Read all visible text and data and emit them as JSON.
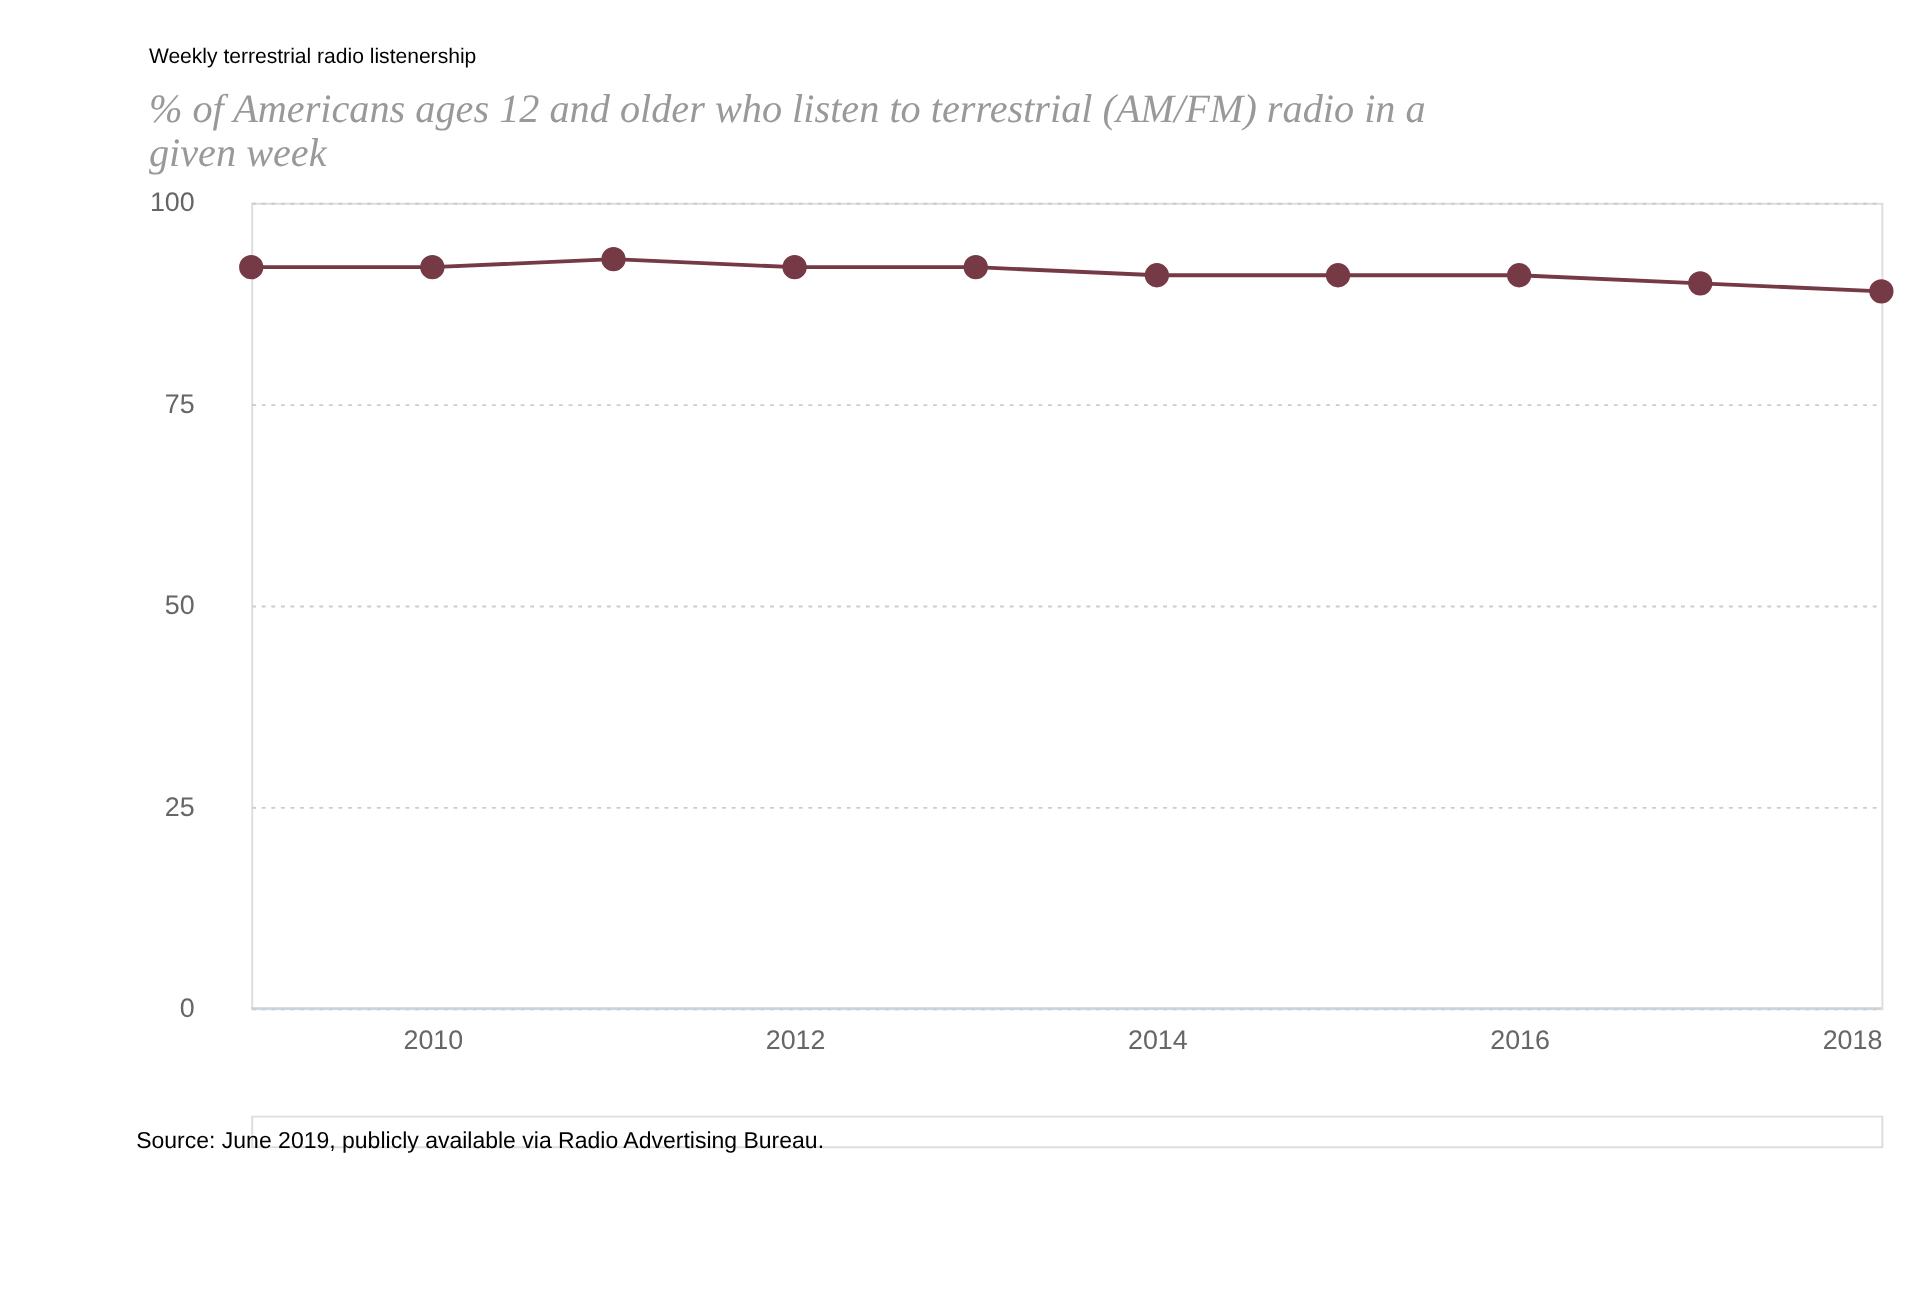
{
  "chart_data": {
    "type": "line",
    "title": "Weekly terrestrial radio listenership",
    "subtitle": "% of Americans ages 12 and older who listen to terrestrial (AM/FM) radio in a given week",
    "x": [
      2009,
      2010,
      2011,
      2012,
      2013,
      2014,
      2015,
      2016,
      2017,
      2018
    ],
    "series": [
      {
        "color": "#763a46",
        "values": [
          92,
          92,
          93,
          92,
          92,
          91,
          91,
          91,
          90,
          89
        ]
      }
    ],
    "xlim": [
      2009,
      2018
    ],
    "xticks": [
      2010,
      2012,
      2014,
      2016,
      2018
    ],
    "ylim": [
      0,
      100
    ],
    "yticks": [
      0,
      25,
      50,
      75,
      100
    ],
    "grid": "y",
    "marker": "circle",
    "line_style": "solid",
    "legend": false,
    "annotations": [
      "Source: June 2019, publicly available via Radio Advertising Bureau."
    ]
  }
}
